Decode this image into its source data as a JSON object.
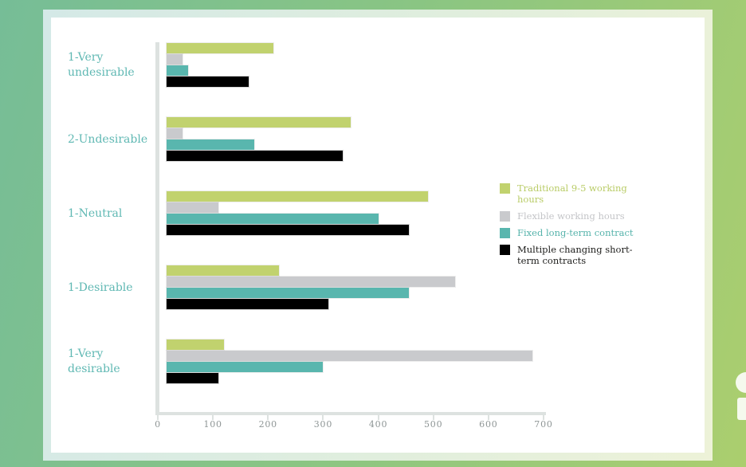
{
  "chart_data": {
    "type": "bar",
    "orientation": "horizontal",
    "title": "",
    "xlabel": "",
    "ylabel": "",
    "categories": [
      "1-Very undesirable",
      "2-Undesirable",
      "1-Neutral",
      "1-Desirable",
      "1-Very desirable"
    ],
    "series": [
      {
        "name": "Traditional 9-5 working hours",
        "color": "#c1d26e",
        "text_color": "#b9cc67",
        "values": [
          210,
          350,
          490,
          220,
          120
        ]
      },
      {
        "name": "Flexible working hours",
        "color": "#c9cacd",
        "text_color": "#c4c5c8",
        "values": [
          45,
          45,
          110,
          540,
          680
        ]
      },
      {
        "name": "Fixed long-term contract",
        "color": "#59b6ae",
        "text_color": "#56b3ab",
        "values": [
          55,
          175,
          400,
          455,
          300
        ]
      },
      {
        "name": "Multiple changing short-term contracts",
        "color": "#000000",
        "text_color": "#1d1d1b",
        "values": [
          165,
          335,
          455,
          310,
          110
        ]
      }
    ],
    "xlim": [
      0,
      700
    ],
    "x_ticks": [
      "0",
      "100",
      "200",
      "300",
      "400",
      "500",
      "600",
      "700"
    ],
    "grid": false,
    "legend_position": "middle-right"
  },
  "styles": {
    "category_label_color": "#5fb8b3",
    "axis_color": "#dde2e0",
    "tick_label_color": "#8e9595",
    "card_background": "#ffffff",
    "background_gradient": [
      "#76bd97",
      "#8ac583",
      "#abce6e"
    ]
  }
}
